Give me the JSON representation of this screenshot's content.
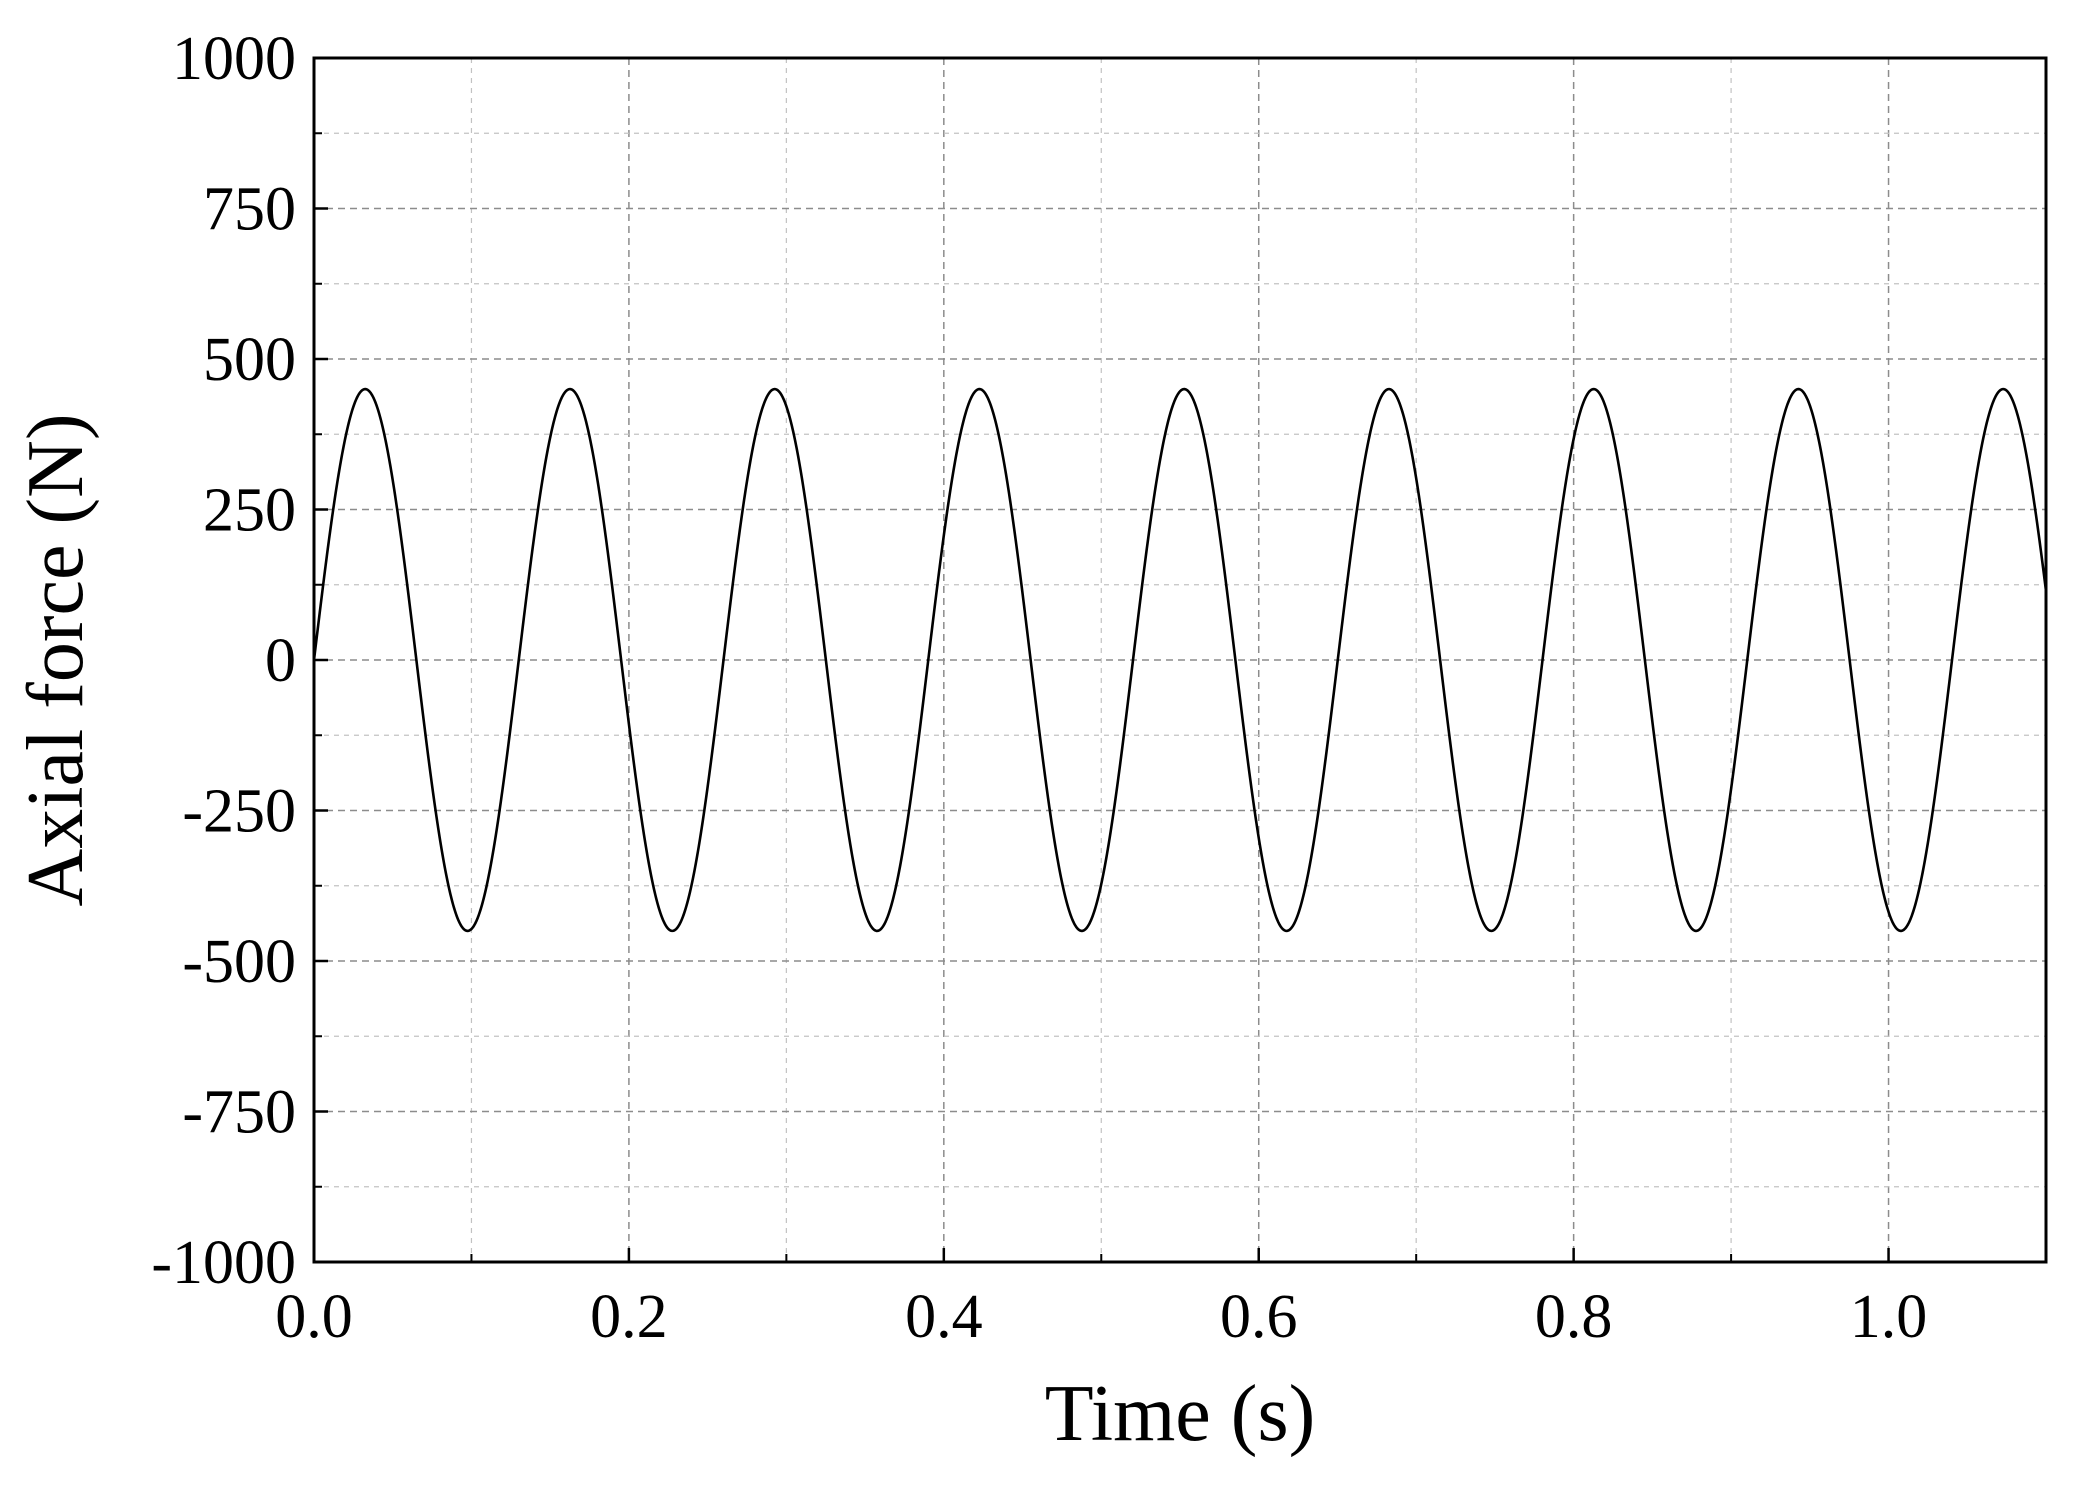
{
  "chart_data": {
    "type": "line",
    "title": "",
    "xlabel": "Time (s)",
    "ylabel": "Axial force (N)",
    "xlim": [
      0.0,
      1.1
    ],
    "ylim": [
      -1000,
      1000
    ],
    "x_ticks": [
      0.0,
      0.2,
      0.4,
      0.6,
      0.8,
      1.0
    ],
    "x_tick_labels": [
      "0.0",
      "0.2",
      "0.4",
      "0.6",
      "0.8",
      "1.0"
    ],
    "x_minor_ticks": [
      0.1,
      0.3,
      0.5,
      0.7,
      0.9,
      1.1
    ],
    "y_ticks": [
      1000,
      750,
      500,
      250,
      0,
      -250,
      -500,
      -750,
      -1000
    ],
    "y_tick_labels": [
      "1000",
      "750",
      "500",
      "250",
      "0",
      "-250",
      "-500",
      "-750",
      "-1000"
    ],
    "y_minor_ticks": [
      875,
      625,
      375,
      125,
      -125,
      -375,
      -625,
      -875
    ],
    "grid": true,
    "legend": "none",
    "series": [
      {
        "color": "#000000",
        "function": "sine",
        "amplitude": 450,
        "frequency_hz": 7.69,
        "x_range": [
          0.0,
          1.1
        ]
      }
    ],
    "peaks_x": [
      0.033,
      0.163,
      0.293,
      0.423,
      0.553,
      0.683,
      0.813,
      0.943,
      1.073
    ],
    "troughs_x": [
      0.098,
      0.228,
      0.358,
      0.488,
      0.618,
      0.748,
      0.878,
      1.008
    ]
  }
}
